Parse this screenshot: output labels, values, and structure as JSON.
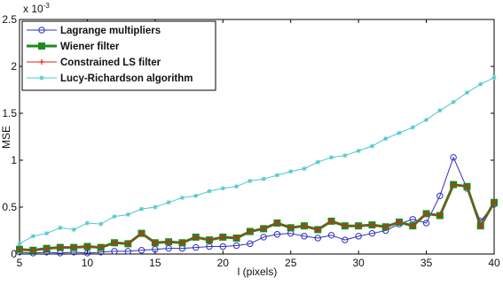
{
  "chart_data": {
    "type": "line",
    "title": "",
    "xlabel": "l (pixels)",
    "ylabel": "MSE",
    "y_exponent_label": "x 10",
    "y_exponent_power": "-3",
    "xlim": [
      5,
      40
    ],
    "ylim": [
      0,
      2.5
    ],
    "x_ticks": [
      5,
      10,
      15,
      20,
      25,
      30,
      35,
      40
    ],
    "x_tick_labels": [
      "5",
      "10",
      "15",
      "20",
      "25",
      "30",
      "35",
      "40"
    ],
    "y_ticks": [
      0,
      0.5,
      1,
      1.5,
      2,
      2.5
    ],
    "y_tick_labels": [
      "0",
      "0.5",
      "1",
      "1.5",
      "2",
      "2.5"
    ],
    "grid": false,
    "legend_position": "top-left",
    "x": [
      5,
      6,
      7,
      8,
      9,
      10,
      11,
      12,
      13,
      14,
      15,
      16,
      17,
      18,
      19,
      20,
      21,
      22,
      23,
      24,
      25,
      26,
      27,
      28,
      29,
      30,
      31,
      32,
      33,
      34,
      35,
      36,
      37,
      38,
      39,
      40
    ],
    "series": [
      {
        "name": "Lagrange multipliers",
        "color": "#3030c0",
        "marker": "circle",
        "values": [
          0.02,
          0.01,
          0.02,
          0.01,
          0.02,
          0.01,
          0.02,
          0.03,
          0.03,
          0.04,
          0.05,
          0.06,
          0.06,
          0.07,
          0.08,
          0.08,
          0.09,
          0.11,
          0.18,
          0.21,
          0.22,
          0.19,
          0.17,
          0.2,
          0.15,
          0.19,
          0.22,
          0.25,
          0.32,
          0.37,
          0.33,
          0.62,
          1.03,
          0.7,
          0.35,
          0.53
        ]
      },
      {
        "name": "Wiener filter",
        "color": "#1e8a1e",
        "marker": "square",
        "values": [
          0.05,
          0.04,
          0.06,
          0.07,
          0.07,
          0.08,
          0.07,
          0.12,
          0.11,
          0.22,
          0.12,
          0.13,
          0.12,
          0.18,
          0.15,
          0.18,
          0.17,
          0.24,
          0.27,
          0.33,
          0.28,
          0.3,
          0.26,
          0.35,
          0.3,
          0.3,
          0.31,
          0.29,
          0.34,
          0.3,
          0.43,
          0.41,
          0.74,
          0.72,
          0.3,
          0.55
        ]
      },
      {
        "name": "Constrained LS filter",
        "color": "#e02020",
        "marker": "plus",
        "values": [
          0.05,
          0.04,
          0.06,
          0.07,
          0.07,
          0.08,
          0.07,
          0.12,
          0.11,
          0.22,
          0.12,
          0.13,
          0.12,
          0.18,
          0.15,
          0.18,
          0.17,
          0.24,
          0.27,
          0.33,
          0.28,
          0.3,
          0.26,
          0.35,
          0.3,
          0.3,
          0.31,
          0.29,
          0.34,
          0.3,
          0.43,
          0.41,
          0.74,
          0.72,
          0.3,
          0.55
        ]
      },
      {
        "name": "Lucy-Richardson algorithm",
        "color": "#4fc8cc",
        "marker": "star",
        "values": [
          0.11,
          0.19,
          0.22,
          0.28,
          0.26,
          0.33,
          0.32,
          0.4,
          0.42,
          0.48,
          0.5,
          0.55,
          0.6,
          0.62,
          0.67,
          0.7,
          0.72,
          0.78,
          0.8,
          0.84,
          0.88,
          0.91,
          0.98,
          1.03,
          1.05,
          1.1,
          1.15,
          1.23,
          1.29,
          1.35,
          1.43,
          1.53,
          1.62,
          1.72,
          1.81,
          1.88
        ]
      }
    ]
  }
}
